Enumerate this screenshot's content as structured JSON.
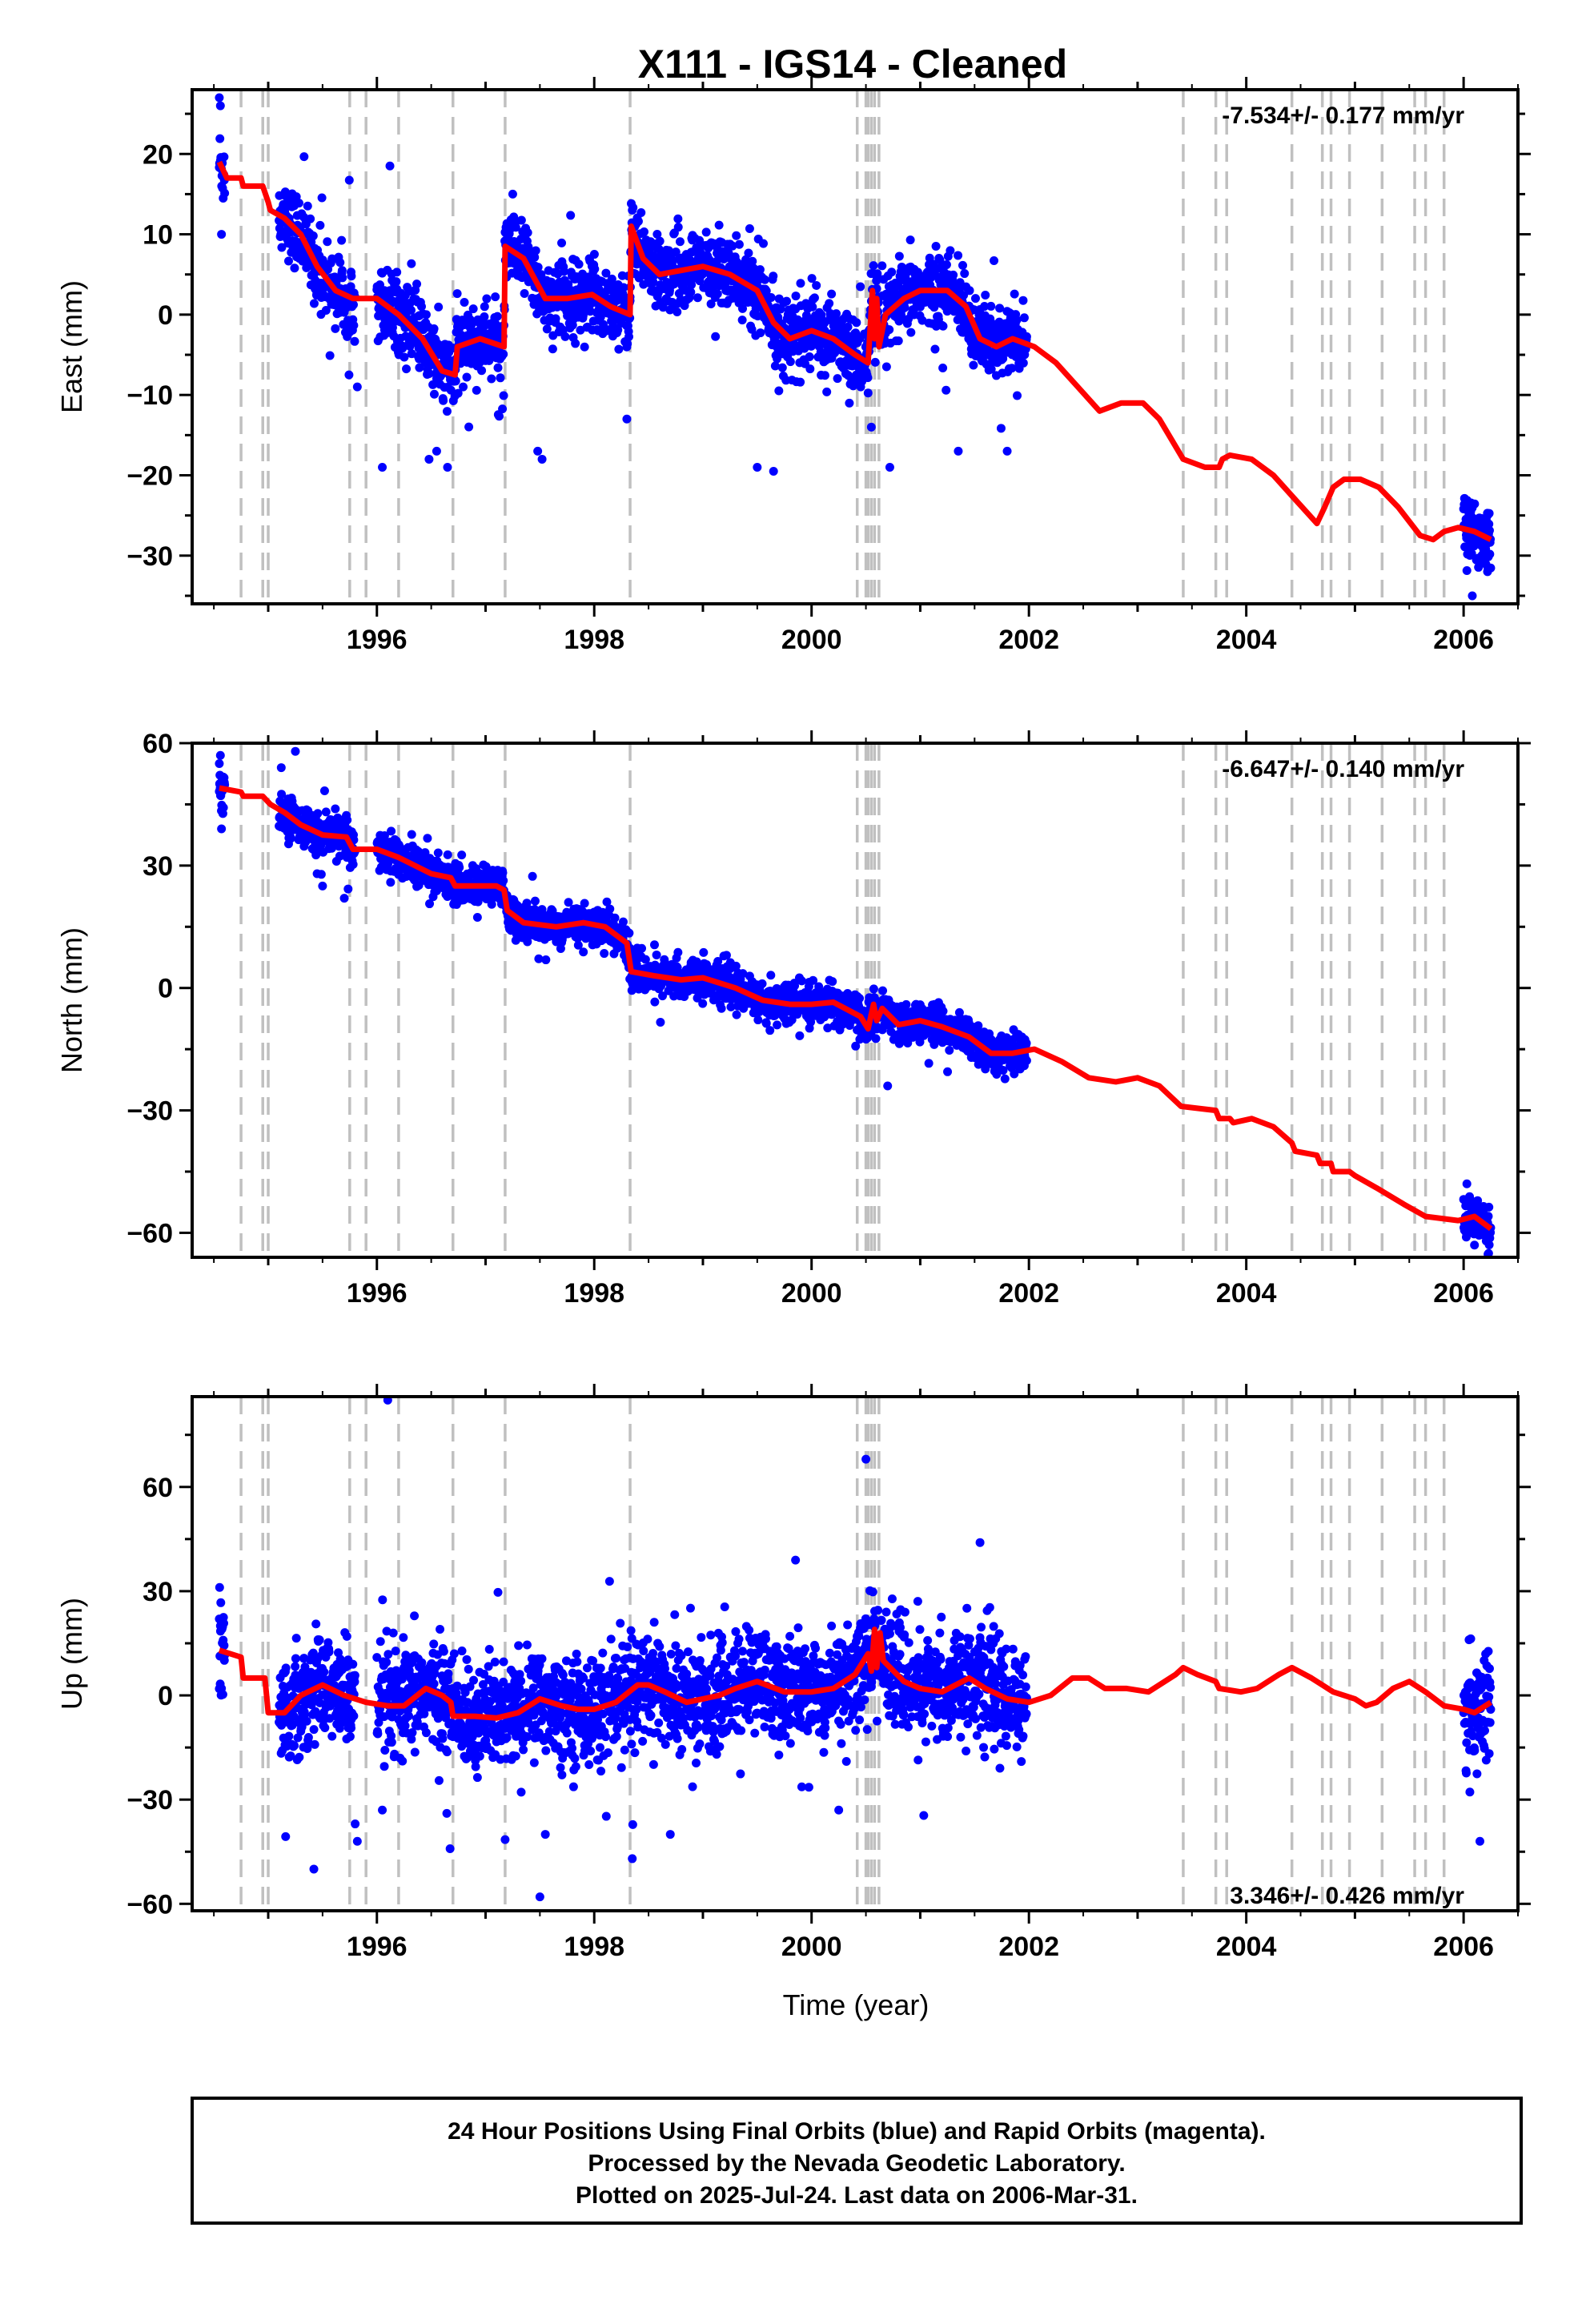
{
  "title": "X111  - IGS14 - Cleaned",
  "xlabel": "Time (year)",
  "footer": [
    "24 Hour Positions Using Final Orbits (blue) and Rapid Orbits (magenta).",
    "Processed by the Nevada Geodetic Laboratory.",
    "Plotted on 2025-Jul-24. Last data on 2006-Mar-31."
  ],
  "colors": {
    "points": "#0000ff",
    "model": "#ff0000",
    "steps": "#c0c0c0",
    "axis": "#000000"
  },
  "chart_data": [
    {
      "type": "scatter",
      "panel": "east",
      "ylabel": "East (mm)",
      "rate": "-7.534+/- 0.177 mm/yr",
      "xlim": [
        1994.3,
        2006.5
      ],
      "ylim": [
        -36,
        28
      ],
      "xticks": [
        1996,
        1998,
        2000,
        2002,
        2004,
        2006
      ],
      "yticks": [
        -30,
        -20,
        -10,
        0,
        10,
        20
      ],
      "grid": false,
      "model_knots": [
        [
          1994.55,
          19
        ],
        [
          1994.62,
          17
        ],
        [
          1994.75,
          17
        ],
        [
          1994.77,
          16
        ],
        [
          1994.95,
          16
        ],
        [
          1995.0,
          14
        ],
        [
          1995.02,
          13
        ],
        [
          1995.15,
          12
        ],
        [
          1995.3,
          10
        ],
        [
          1995.45,
          6
        ],
        [
          1995.62,
          3
        ],
        [
          1995.78,
          2
        ],
        [
          1996.0,
          2
        ],
        [
          1996.2,
          0
        ],
        [
          1996.42,
          -3
        ],
        [
          1996.6,
          -7
        ],
        [
          1996.72,
          -7.5
        ],
        [
          1996.74,
          -4
        ],
        [
          1996.95,
          -3
        ],
        [
          1997.17,
          -4
        ],
        [
          1997.18,
          8.5
        ],
        [
          1997.35,
          7
        ],
        [
          1997.55,
          2
        ],
        [
          1997.75,
          2
        ],
        [
          1997.98,
          2.5
        ],
        [
          1998.15,
          1
        ],
        [
          1998.33,
          0
        ],
        [
          1998.34,
          11
        ],
        [
          1998.45,
          7
        ],
        [
          1998.6,
          5
        ],
        [
          1998.8,
          5.5
        ],
        [
          1999.0,
          6
        ],
        [
          1999.25,
          5
        ],
        [
          1999.5,
          3
        ],
        [
          1999.65,
          -1
        ],
        [
          1999.8,
          -3
        ],
        [
          2000.0,
          -2
        ],
        [
          2000.2,
          -3
        ],
        [
          2000.4,
          -5
        ],
        [
          2000.52,
          -6
        ],
        [
          2000.56,
          3
        ],
        [
          2000.58,
          -3
        ],
        [
          2000.6,
          2
        ],
        [
          2000.62,
          -4
        ],
        [
          2000.68,
          0
        ],
        [
          2000.85,
          2
        ],
        [
          2001.0,
          3
        ],
        [
          2001.25,
          3
        ],
        [
          2001.42,
          1
        ],
        [
          2001.55,
          -3
        ],
        [
          2001.7,
          -4
        ],
        [
          2001.85,
          -3
        ],
        [
          2002.05,
          -4
        ],
        [
          2002.25,
          -6
        ],
        [
          2002.45,
          -9
        ],
        [
          2002.65,
          -12
        ],
        [
          2002.85,
          -11
        ],
        [
          2003.05,
          -11
        ],
        [
          2003.2,
          -13
        ],
        [
          2003.42,
          -18
        ],
        [
          2003.62,
          -19
        ],
        [
          2003.75,
          -19
        ],
        [
          2003.78,
          -18
        ],
        [
          2003.85,
          -17.5
        ],
        [
          2004.05,
          -18
        ],
        [
          2004.25,
          -20
        ],
        [
          2004.45,
          -23
        ],
        [
          2004.65,
          -26
        ],
        [
          2004.72,
          -24
        ],
        [
          2004.8,
          -21.5
        ],
        [
          2004.9,
          -20.5
        ],
        [
          2005.05,
          -20.5
        ],
        [
          2005.22,
          -21.5
        ],
        [
          2005.4,
          -24
        ],
        [
          2005.6,
          -27.5
        ],
        [
          2005.72,
          -28
        ],
        [
          2005.82,
          -27
        ],
        [
          2005.95,
          -26.5
        ],
        [
          2006.1,
          -27
        ],
        [
          2006.25,
          -28
        ]
      ],
      "data_segments": [
        [
          1994.55,
          1994.6
        ],
        [
          1995.1,
          1995.8
        ],
        [
          1996.0,
          1998.33
        ],
        [
          1998.33,
          2001.98
        ],
        [
          2006.0,
          2006.25
        ]
      ],
      "scatter_sd": 2.2,
      "outliers": [
        [
          1994.55,
          27
        ],
        [
          1994.56,
          26
        ],
        [
          1994.57,
          10
        ],
        [
          1995.82,
          -9
        ],
        [
          1996.05,
          -19
        ],
        [
          1996.12,
          18.5
        ],
        [
          1996.48,
          -18
        ],
        [
          1996.55,
          -17
        ],
        [
          1996.65,
          -19
        ],
        [
          1997.25,
          15
        ],
        [
          1997.48,
          -17
        ],
        [
          1997.52,
          -18
        ],
        [
          1998.3,
          -13
        ],
        [
          1998.35,
          13
        ],
        [
          1999.5,
          -19
        ],
        [
          1999.65,
          -19.5
        ],
        [
          2000.55,
          -14
        ],
        [
          2000.72,
          -19
        ],
        [
          2001.35,
          -17
        ],
        [
          2001.8,
          -17
        ],
        [
          2006.08,
          -35
        ],
        [
          2006.22,
          -32
        ]
      ]
    },
    {
      "type": "scatter",
      "panel": "north",
      "ylabel": "North (mm)",
      "rate": "-6.647+/- 0.140 mm/yr",
      "xlim": [
        1994.3,
        2006.5
      ],
      "ylim": [
        -66,
        60
      ],
      "xticks": [
        1996,
        1998,
        2000,
        2002,
        2004,
        2006
      ],
      "yticks": [
        -60,
        -30,
        0,
        30,
        60
      ],
      "grid": false,
      "model_knots": [
        [
          1994.55,
          49
        ],
        [
          1994.75,
          48
        ],
        [
          1994.77,
          47
        ],
        [
          1994.95,
          47
        ],
        [
          1995.02,
          45
        ],
        [
          1995.15,
          43
        ],
        [
          1995.3,
          40
        ],
        [
          1995.5,
          37.5
        ],
        [
          1995.72,
          37
        ],
        [
          1995.78,
          34
        ],
        [
          1996.0,
          34
        ],
        [
          1996.2,
          32
        ],
        [
          1996.5,
          28
        ],
        [
          1996.68,
          27
        ],
        [
          1996.72,
          25
        ],
        [
          1996.95,
          25
        ],
        [
          1997.1,
          25
        ],
        [
          1997.17,
          24
        ],
        [
          1997.2,
          19
        ],
        [
          1997.35,
          16
        ],
        [
          1997.65,
          15
        ],
        [
          1997.9,
          16
        ],
        [
          1998.1,
          15
        ],
        [
          1998.3,
          11
        ],
        [
          1998.34,
          4
        ],
        [
          1998.55,
          3
        ],
        [
          1998.8,
          2
        ],
        [
          1999.0,
          2.5
        ],
        [
          1999.3,
          0
        ],
        [
          1999.55,
          -3
        ],
        [
          1999.8,
          -4
        ],
        [
          2000.0,
          -4
        ],
        [
          2000.2,
          -3.5
        ],
        [
          2000.45,
          -7
        ],
        [
          2000.52,
          -10
        ],
        [
          2000.57,
          -4
        ],
        [
          2000.6,
          -8
        ],
        [
          2000.65,
          -5
        ],
        [
          2000.8,
          -9
        ],
        [
          2001.0,
          -8
        ],
        [
          2001.2,
          -9.5
        ],
        [
          2001.45,
          -12
        ],
        [
          2001.65,
          -16
        ],
        [
          2001.85,
          -16
        ],
        [
          2002.05,
          -15
        ],
        [
          2002.3,
          -18
        ],
        [
          2002.55,
          -22
        ],
        [
          2002.8,
          -23
        ],
        [
          2003.0,
          -22
        ],
        [
          2003.2,
          -24
        ],
        [
          2003.4,
          -29
        ],
        [
          2003.72,
          -30
        ],
        [
          2003.75,
          -32
        ],
        [
          2003.85,
          -32
        ],
        [
          2003.88,
          -33
        ],
        [
          2004.05,
          -32
        ],
        [
          2004.25,
          -34
        ],
        [
          2004.42,
          -38
        ],
        [
          2004.45,
          -40
        ],
        [
          2004.65,
          -41
        ],
        [
          2004.68,
          -43
        ],
        [
          2004.78,
          -43
        ],
        [
          2004.8,
          -45
        ],
        [
          2004.95,
          -45
        ],
        [
          2005.0,
          -46
        ],
        [
          2005.2,
          -49
        ],
        [
          2005.45,
          -53
        ],
        [
          2005.65,
          -56
        ],
        [
          2005.95,
          -57
        ],
        [
          2006.1,
          -56
        ],
        [
          2006.25,
          -59
        ]
      ],
      "data_segments": [
        [
          1994.55,
          1994.6
        ],
        [
          1995.1,
          1995.8
        ],
        [
          1996.0,
          1998.33
        ],
        [
          1998.33,
          2001.98
        ],
        [
          2006.0,
          2006.25
        ]
      ],
      "scatter_sd": 2.3,
      "outliers": [
        [
          1994.55,
          55
        ],
        [
          1994.56,
          57
        ],
        [
          1994.57,
          39
        ],
        [
          1995.12,
          54
        ],
        [
          1995.25,
          58
        ],
        [
          1995.45,
          28
        ],
        [
          1995.5,
          25
        ],
        [
          1995.7,
          22
        ],
        [
          2000.7,
          -24
        ],
        [
          2006.03,
          -48
        ],
        [
          2006.1,
          -63
        ]
      ]
    },
    {
      "type": "scatter",
      "panel": "up",
      "ylabel": "Up (mm)",
      "rate": "3.346+/- 0.426 mm/yr",
      "xlim": [
        1994.3,
        2006.5
      ],
      "ylim": [
        -62,
        86
      ],
      "xticks": [
        1996,
        1998,
        2000,
        2002,
        2004,
        2006
      ],
      "yticks": [
        -60,
        -30,
        0,
        30,
        60
      ],
      "grid": false,
      "model_knots": [
        [
          1994.55,
          13
        ],
        [
          1994.75,
          11
        ],
        [
          1994.77,
          5
        ],
        [
          1994.97,
          5
        ],
        [
          1995.0,
          -5
        ],
        [
          1995.15,
          -5
        ],
        [
          1995.3,
          0
        ],
        [
          1995.5,
          3
        ],
        [
          1995.7,
          0
        ],
        [
          1995.9,
          -2
        ],
        [
          1996.1,
          -3
        ],
        [
          1996.25,
          -3
        ],
        [
          1996.45,
          2
        ],
        [
          1996.6,
          0
        ],
        [
          1996.68,
          -2
        ],
        [
          1996.7,
          -6
        ],
        [
          1996.9,
          -6
        ],
        [
          1997.1,
          -6.5
        ],
        [
          1997.3,
          -5
        ],
        [
          1997.5,
          -1
        ],
        [
          1997.7,
          -3
        ],
        [
          1997.85,
          -4
        ],
        [
          1998.0,
          -4
        ],
        [
          1998.2,
          -2
        ],
        [
          1998.4,
          3
        ],
        [
          1998.5,
          3
        ],
        [
          1998.65,
          1
        ],
        [
          1998.85,
          -2
        ],
        [
          1999.0,
          -1
        ],
        [
          1999.15,
          0
        ],
        [
          1999.3,
          2
        ],
        [
          1999.5,
          4
        ],
        [
          1999.75,
          1
        ],
        [
          2000.0,
          1
        ],
        [
          2000.2,
          2
        ],
        [
          2000.4,
          6
        ],
        [
          2000.52,
          12
        ],
        [
          2000.55,
          7
        ],
        [
          2000.58,
          19
        ],
        [
          2000.6,
          8
        ],
        [
          2000.63,
          18
        ],
        [
          2000.66,
          10
        ],
        [
          2000.85,
          4
        ],
        [
          2001.0,
          2
        ],
        [
          2001.2,
          1
        ],
        [
          2001.45,
          5
        ],
        [
          2001.6,
          2
        ],
        [
          2001.8,
          -1
        ],
        [
          2002.0,
          -2
        ],
        [
          2002.2,
          0
        ],
        [
          2002.4,
          5
        ],
        [
          2002.55,
          5
        ],
        [
          2002.7,
          2
        ],
        [
          2002.9,
          2
        ],
        [
          2003.1,
          1
        ],
        [
          2003.35,
          6
        ],
        [
          2003.42,
          8
        ],
        [
          2003.55,
          6
        ],
        [
          2003.72,
          4
        ],
        [
          2003.75,
          2
        ],
        [
          2003.95,
          1
        ],
        [
          2004.1,
          2
        ],
        [
          2004.3,
          6
        ],
        [
          2004.42,
          8
        ],
        [
          2004.6,
          5
        ],
        [
          2004.8,
          1
        ],
        [
          2005.0,
          -1
        ],
        [
          2005.1,
          -3
        ],
        [
          2005.2,
          -2
        ],
        [
          2005.35,
          2
        ],
        [
          2005.5,
          4
        ],
        [
          2005.65,
          1
        ],
        [
          2005.82,
          -3
        ],
        [
          2006.0,
          -4
        ],
        [
          2006.1,
          -5
        ],
        [
          2006.25,
          -2
        ]
      ],
      "data_segments": [
        [
          1994.55,
          1994.6
        ],
        [
          1995.1,
          1995.8
        ],
        [
          1996.0,
          1998.33
        ],
        [
          1998.33,
          2001.98
        ],
        [
          2006.0,
          2006.25
        ]
      ],
      "scatter_sd": 7.5,
      "outliers": [
        [
          1994.55,
          22
        ],
        [
          1994.56,
          20
        ],
        [
          1994.57,
          2
        ],
        [
          1995.42,
          -50
        ],
        [
          1995.8,
          -37
        ],
        [
          1995.82,
          -42
        ],
        [
          1996.1,
          85
        ],
        [
          1996.05,
          -33
        ],
        [
          1997.5,
          -58
        ],
        [
          1997.55,
          -40
        ],
        [
          1998.35,
          -47
        ],
        [
          1998.7,
          -40
        ],
        [
          2000.5,
          68
        ],
        [
          2000.25,
          -33
        ],
        [
          2001.55,
          44
        ],
        [
          2006.05,
          16
        ],
        [
          2006.15,
          -42
        ]
      ]
    }
  ],
  "step_epochs": [
    1994.75,
    1994.95,
    1995.0,
    1995.75,
    1995.9,
    1996.2,
    1996.7,
    1997.18,
    1998.33,
    2000.42,
    2000.5,
    2000.52,
    2000.55,
    2000.58,
    2000.62,
    2003.42,
    2003.72,
    2003.82,
    2004.42,
    2004.7,
    2004.78,
    2004.95,
    2005.25,
    2005.55,
    2005.65,
    2005.82
  ]
}
